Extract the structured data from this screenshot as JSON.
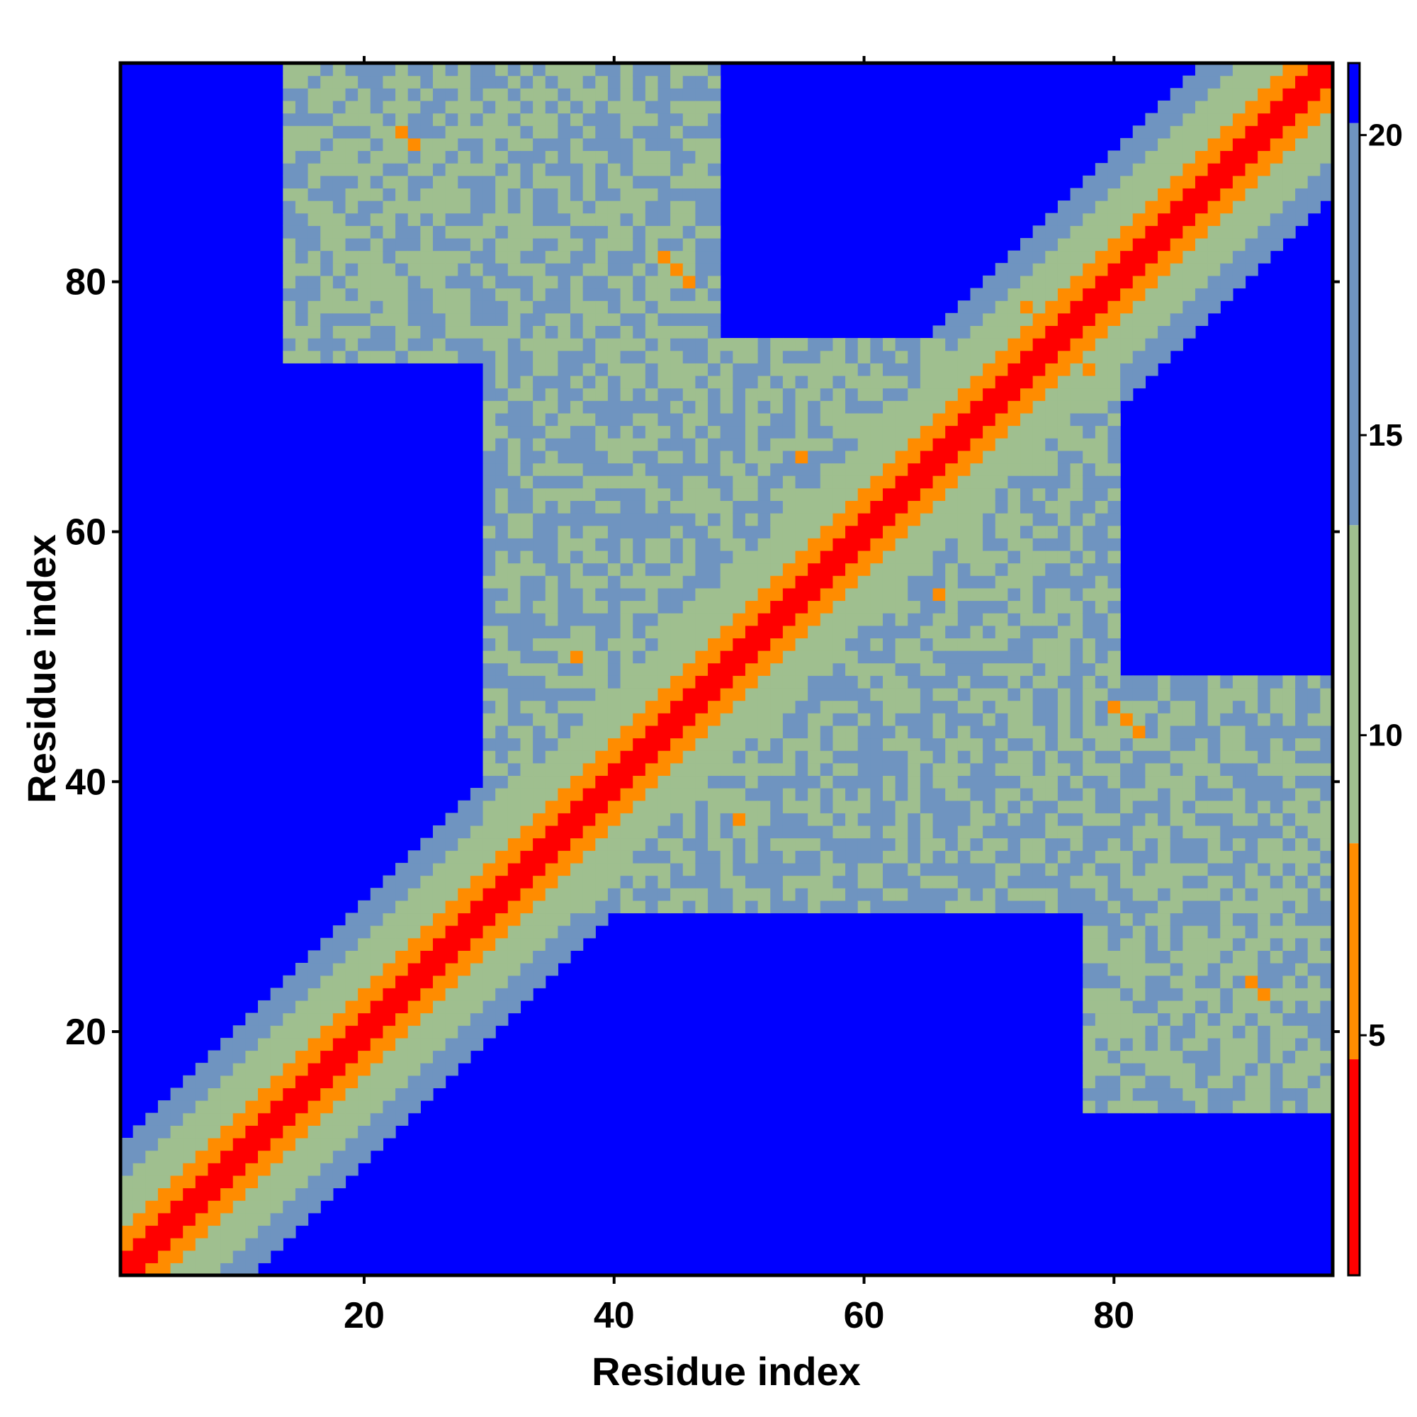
{
  "chart_data": {
    "type": "heatmap",
    "title": "",
    "xlabel": "Residue index",
    "ylabel": "Residue index",
    "n_residues": 97,
    "xlim": [
      0.5,
      97.5
    ],
    "ylim": [
      0.5,
      97.5
    ],
    "x_ticks": [
      20,
      40,
      60,
      80
    ],
    "y_ticks": [
      20,
      40,
      60,
      80
    ],
    "x_tick_labels": [
      "20",
      "40",
      "60",
      "80"
    ],
    "y_tick_labels": [
      "20",
      "40",
      "60",
      "80"
    ],
    "value_description": "symmetric inter-residue distance map; cells beyond cutoff shown in background color",
    "colorbar": {
      "range": [
        1,
        21.2
      ],
      "ticks": [
        5,
        10,
        15,
        20
      ],
      "tick_labels": [
        "5",
        "10",
        "15",
        "20"
      ],
      "segments": [
        {
          "from": 1,
          "to": 4.6,
          "color": "#ff0000"
        },
        {
          "from": 4.6,
          "to": 8.2,
          "color": "#ff8c00"
        },
        {
          "from": 8.2,
          "to": 13.5,
          "color": "#9fbf8f"
        },
        {
          "from": 13.5,
          "to": 20.2,
          "color": "#6f94c0"
        },
        {
          "from": 20.2,
          "to": 21.2,
          "color": "#0000ff"
        }
      ]
    },
    "background_color": "#0000ff",
    "diagonal_profile": [
      {
        "offset": 0,
        "value": 2.0
      },
      {
        "offset": 1,
        "value": 3.8
      },
      {
        "offset": 2,
        "value": 5.5
      },
      {
        "offset": 3,
        "value": 6.8
      },
      {
        "offset": 4,
        "value": 8.5
      },
      {
        "offset": 5,
        "value": 9.8
      },
      {
        "offset": 6,
        "value": 11.0
      },
      {
        "offset": 7,
        "value": 12.5
      },
      {
        "offset": 8,
        "value": 14.0
      },
      {
        "offset": 9,
        "value": 15.5
      },
      {
        "offset": 10,
        "value": 17.0
      }
    ],
    "contact_regions": [
      {
        "i_range": [
          1,
          38
        ],
        "j_range": [
          1,
          38
        ],
        "note": "dense near-diagonal band"
      },
      {
        "i_range": [
          39,
          66
        ],
        "j_range": [
          39,
          66
        ],
        "note": "dense near-diagonal band"
      },
      {
        "i_range": [
          67,
          97
        ],
        "j_range": [
          67,
          97
        ],
        "note": "dense near-diagonal band"
      },
      {
        "i_range": [
          14,
          48
        ],
        "j_range": [
          74,
          97
        ],
        "value": 12.5,
        "note": "long-range contact patch"
      },
      {
        "i_range": [
          78,
          97
        ],
        "j_range": [
          14,
          48
        ],
        "value": 12.5,
        "note": "long-range contact patch"
      },
      {
        "i_range": [
          30,
          80
        ],
        "j_range": [
          30,
          75
        ],
        "value": 13.0,
        "note": "broad mid-range contact area"
      }
    ],
    "notable_close_contacts": [
      {
        "i": 44,
        "j": 82,
        "value": 6.0
      },
      {
        "i": 45,
        "j": 81,
        "value": 6.0
      },
      {
        "i": 46,
        "j": 80,
        "value": 6.0
      },
      {
        "i": 81,
        "j": 45,
        "value": 6.0
      },
      {
        "i": 82,
        "j": 44,
        "value": 6.0
      },
      {
        "i": 80,
        "j": 46,
        "value": 6.0
      },
      {
        "i": 37,
        "j": 50,
        "value": 6.5
      },
      {
        "i": 50,
        "j": 37,
        "value": 6.5
      },
      {
        "i": 23,
        "j": 92,
        "value": 6.5
      },
      {
        "i": 24,
        "j": 91,
        "value": 6.5
      },
      {
        "i": 92,
        "j": 23,
        "value": 6.5
      },
      {
        "i": 91,
        "j": 24,
        "value": 6.5
      },
      {
        "i": 55,
        "j": 66,
        "value": 7.0
      },
      {
        "i": 66,
        "j": 55,
        "value": 7.0
      },
      {
        "i": 73,
        "j": 78,
        "value": 6.5
      },
      {
        "i": 78,
        "j": 73,
        "value": 6.5
      }
    ]
  }
}
